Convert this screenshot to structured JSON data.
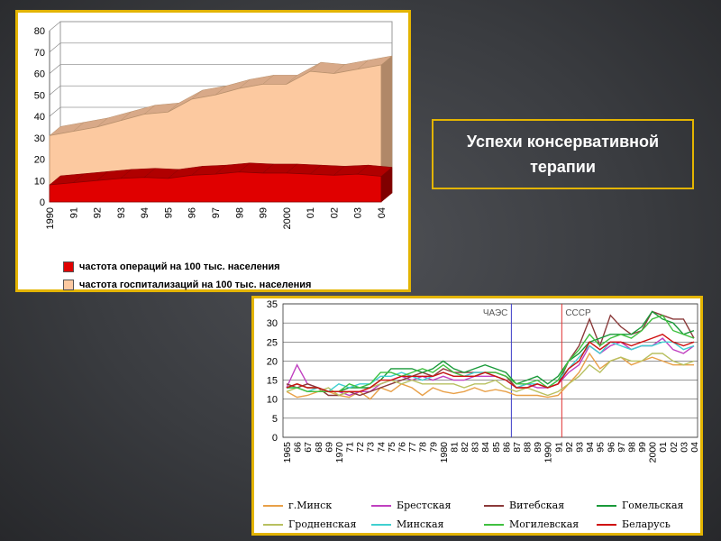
{
  "title_text": "Успехи консервативной терапии",
  "chart_data": [
    {
      "type": "area",
      "x": [
        "1990",
        "91",
        "92",
        "93",
        "94",
        "95",
        "96",
        "97",
        "98",
        "99",
        "2000",
        "01",
        "02",
        "03",
        "04"
      ],
      "ylim": [
        0,
        80
      ],
      "yticks": [
        "0",
        "10",
        "20",
        "30",
        "40",
        "50",
        "60",
        "70",
        "80"
      ],
      "series": [
        {
          "name": "частота операций на 100 тыс. населения",
          "color": "#e00000",
          "values": [
            8,
            9,
            10,
            11,
            11.5,
            11,
            12.5,
            13,
            14,
            13.5,
            13.5,
            13,
            12.5,
            13,
            12
          ]
        },
        {
          "name": "частота госпитализаций на 100 тыс. населения",
          "color": "#fcc9a0",
          "values": [
            31,
            33,
            35,
            38,
            41,
            42,
            48,
            50,
            53,
            55,
            55,
            61,
            60,
            62,
            64
          ]
        }
      ],
      "stacked": false,
      "grid": true,
      "legend": "bottom"
    },
    {
      "type": "line",
      "x": [
        "1965",
        "66",
        "67",
        "68",
        "69",
        "1970",
        "71",
        "72",
        "73",
        "74",
        "75",
        "76",
        "77",
        "78",
        "79",
        "1980",
        "81",
        "82",
        "83",
        "84",
        "85",
        "86",
        "87",
        "88",
        "89",
        "1990",
        "91",
        "92",
        "93",
        "94",
        "95",
        "96",
        "97",
        "98",
        "99",
        "2000",
        "01",
        "02",
        "03",
        "04"
      ],
      "ylim": [
        0,
        35
      ],
      "yticks": [
        "0",
        "5",
        "10",
        "15",
        "20",
        "25",
        "30",
        "35"
      ],
      "annotations": [
        {
          "text": "ЧАЭС",
          "at": "86",
          "color": "#3c3cc8"
        },
        {
          "text": "СССР",
          "at": "91",
          "color": "#e03030"
        }
      ],
      "series": [
        {
          "name": "г.Минск",
          "color": "#e8a048",
          "values": [
            12,
            10.5,
            11,
            12,
            12,
            11,
            10.5,
            12,
            10,
            13,
            12,
            14,
            13,
            11,
            13,
            12,
            11.5,
            12,
            13,
            12,
            12.5,
            12,
            11,
            11,
            11,
            10.5,
            11,
            14,
            17,
            22,
            18,
            20,
            21,
            19,
            20,
            21,
            20,
            19,
            19,
            19
          ]
        },
        {
          "name": "Брестская",
          "color": "#c040c0",
          "values": [
            13,
            19,
            14,
            13,
            12,
            12,
            11,
            12,
            12,
            14,
            15,
            16,
            15,
            16,
            15,
            16,
            15,
            15,
            16,
            16,
            16,
            15,
            13,
            14,
            13,
            13,
            14,
            17,
            19,
            24,
            22,
            24,
            25,
            23,
            24,
            24,
            26,
            23,
            22,
            24
          ]
        },
        {
          "name": "Витебская",
          "color": "#8b3a3a",
          "values": [
            14,
            13,
            14,
            13,
            11,
            11,
            12,
            11,
            12,
            13,
            14,
            15,
            16,
            17,
            16,
            18,
            17,
            17,
            17,
            17,
            17,
            16,
            13,
            13,
            14,
            13,
            14,
            20,
            24,
            31,
            24,
            32,
            29,
            27,
            28,
            33,
            32,
            31,
            31,
            26
          ]
        },
        {
          "name": "Гомельская",
          "color": "#1a9a3a",
          "values": [
            13,
            14,
            13,
            13,
            12,
            12,
            13,
            13,
            13,
            15,
            18,
            18,
            18,
            17,
            18,
            20,
            18,
            17,
            18,
            19,
            18,
            17,
            14,
            15,
            16,
            14,
            16,
            20,
            22,
            25,
            26,
            27,
            27,
            27,
            29,
            33,
            31,
            30,
            27,
            28
          ]
        },
        {
          "name": "Гродненская",
          "color": "#b8c060",
          "values": [
            12,
            13,
            12,
            12,
            13,
            11,
            12,
            12,
            13,
            14,
            15,
            14,
            15,
            14,
            14,
            14,
            14,
            13,
            14,
            14,
            15,
            13,
            12,
            13,
            12,
            11,
            12,
            14,
            16,
            19,
            17,
            20,
            21,
            20,
            20,
            22,
            22,
            20,
            19,
            20
          ]
        },
        {
          "name": "Минская",
          "color": "#40d0d0",
          "values": [
            13,
            13,
            12,
            13,
            12,
            14,
            13,
            14,
            14,
            16,
            16,
            17,
            16,
            15,
            16,
            17,
            16,
            16,
            17,
            17,
            16,
            15,
            13,
            14,
            14,
            13,
            15,
            18,
            21,
            24,
            22,
            25,
            24,
            23,
            24,
            24,
            25,
            25,
            23,
            24
          ]
        },
        {
          "name": "Могилевская",
          "color": "#40c040",
          "values": [
            13,
            13,
            12,
            12,
            12,
            12,
            14,
            13,
            14,
            17,
            17,
            16,
            17,
            18,
            17,
            19,
            17,
            16,
            16,
            17,
            17,
            16,
            14,
            14,
            15,
            13,
            15,
            20,
            23,
            27,
            24,
            26,
            27,
            26,
            28,
            31,
            32,
            28,
            27,
            26
          ]
        },
        {
          "name": "Беларусь",
          "color": "#d01010",
          "values": [
            13,
            14,
            13,
            13,
            12,
            12,
            12,
            12,
            13,
            15,
            15,
            16,
            16,
            16,
            16,
            17,
            16,
            16,
            16,
            17,
            16,
            15,
            13,
            13,
            14,
            13,
            14,
            18,
            20,
            25,
            23,
            25,
            25,
            24,
            25,
            26,
            27,
            25,
            24,
            25
          ]
        }
      ],
      "grid": true,
      "legend": "bottom"
    }
  ]
}
